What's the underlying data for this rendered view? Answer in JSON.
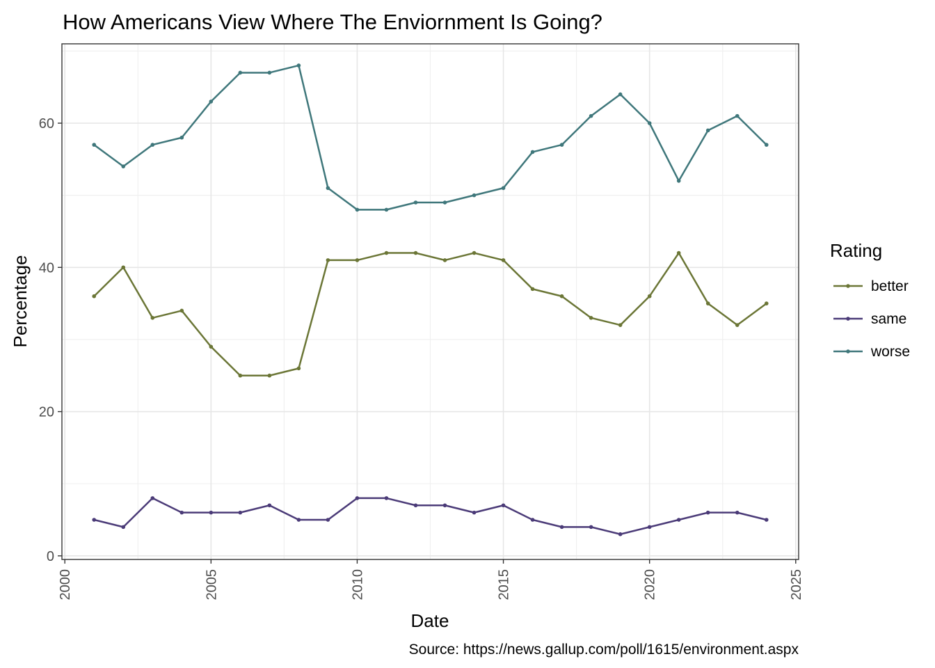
{
  "chart_data": {
    "type": "line",
    "title": "How Americans View Where The Enviornment Is Going?",
    "xlabel": "Date",
    "ylabel": "Percentage",
    "caption": "Source: https://news.gallup.com/poll/1615/environment.aspx",
    "xlim": [
      1999.9,
      2025.1
    ],
    "ylim": [
      -0.5,
      71
    ],
    "x_ticks": [
      2000,
      2005,
      2010,
      2015,
      2020,
      2025
    ],
    "y_ticks": [
      0,
      20,
      40,
      60
    ],
    "grid": true,
    "legend": {
      "title": "Rating",
      "position": "right"
    },
    "x": [
      2001,
      2002,
      2003,
      2004,
      2005,
      2006,
      2007,
      2008,
      2009,
      2010,
      2011,
      2012,
      2013,
      2014,
      2015,
      2016,
      2017,
      2018,
      2019,
      2020,
      2021,
      2022,
      2023,
      2024
    ],
    "series": [
      {
        "name": "better",
        "color": "#6b7636",
        "values": [
          36,
          40,
          33,
          34,
          29,
          25,
          25,
          26,
          41,
          41,
          42,
          42,
          41,
          42,
          41,
          37,
          36,
          33,
          32,
          36,
          42,
          35,
          32,
          35
        ]
      },
      {
        "name": "same",
        "color": "#4b3b78",
        "values": [
          5,
          4,
          8,
          6,
          6,
          6,
          7,
          5,
          5,
          8,
          8,
          7,
          7,
          6,
          7,
          5,
          4,
          4,
          3,
          4,
          5,
          6,
          6,
          5
        ]
      },
      {
        "name": "worse",
        "color": "#3f777b",
        "values": [
          57,
          54,
          57,
          58,
          63,
          67,
          67,
          68,
          51,
          48,
          48,
          49,
          49,
          50,
          51,
          56,
          57,
          61,
          64,
          60,
          52,
          59,
          61,
          57
        ]
      }
    ]
  }
}
